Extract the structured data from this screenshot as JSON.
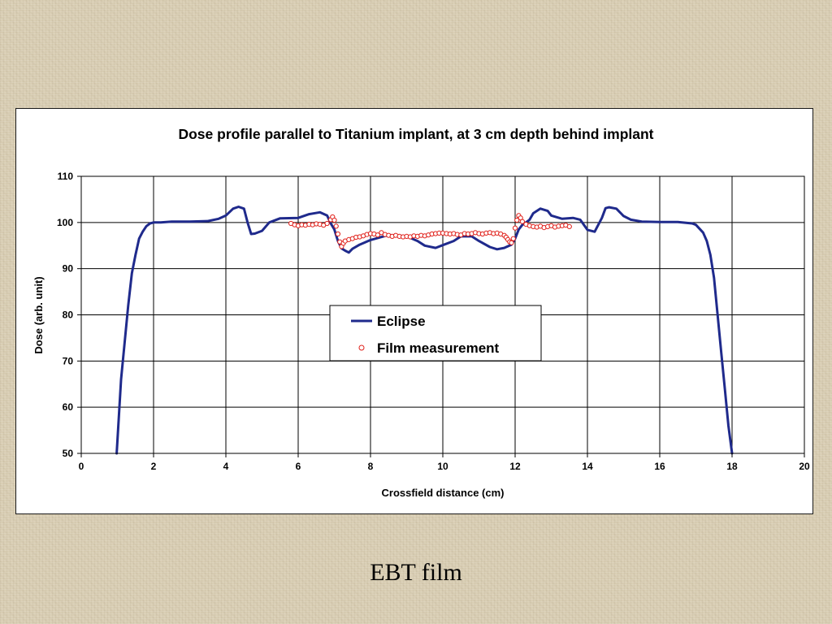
{
  "caption": "EBT film",
  "colors": {
    "eclipse": "#1f2a8c",
    "film": "#e0201a",
    "grid": "#000000",
    "panel": "#ffffff"
  },
  "chart_data": {
    "type": "line",
    "title": "Dose profile parallel to Titanium implant, at 3 cm depth behind implant",
    "xlabel": "Crossfield distance (cm)",
    "ylabel": "Dose (arb. unit)",
    "xlim": [
      0,
      20
    ],
    "ylim": [
      50,
      110
    ],
    "x_ticks": [
      0,
      2,
      4,
      6,
      8,
      10,
      12,
      14,
      16,
      18,
      20
    ],
    "y_ticks": [
      50,
      60,
      70,
      80,
      90,
      100,
      110
    ],
    "grid": true,
    "legend_position": "center",
    "series": [
      {
        "name": "Eclipse",
        "style": "line",
        "x": [
          0.98,
          1.1,
          1.2,
          1.3,
          1.4,
          1.5,
          1.6,
          1.7,
          1.8,
          1.9,
          2.0,
          2.2,
          2.5,
          3.0,
          3.5,
          3.8,
          4.0,
          4.2,
          4.35,
          4.5,
          4.6,
          4.7,
          4.8,
          5.0,
          5.2,
          5.5,
          6.0,
          6.3,
          6.6,
          6.8,
          6.9,
          7.0,
          7.1,
          7.2,
          7.3,
          7.4,
          7.5,
          7.7,
          8.0,
          8.5,
          9.0,
          9.3,
          9.5,
          9.8,
          10.0,
          10.3,
          10.5,
          10.8,
          11.0,
          11.3,
          11.5,
          11.7,
          11.9,
          12.0,
          12.1,
          12.2,
          12.3,
          12.4,
          12.5,
          12.7,
          12.9,
          13.0,
          13.3,
          13.6,
          13.8,
          14.0,
          14.2,
          14.4,
          14.5,
          14.6,
          14.8,
          15.0,
          15.2,
          15.5,
          16.0,
          16.5,
          16.9,
          17.0,
          17.2,
          17.3,
          17.4,
          17.5,
          17.6,
          17.7,
          17.8,
          17.9,
          18.0
        ],
        "values": [
          50,
          66,
          74,
          82,
          89,
          93,
          96.5,
          98,
          99.2,
          99.8,
          100,
          100,
          100.2,
          100.2,
          100.3,
          100.8,
          101.5,
          103,
          103.4,
          103,
          100,
          97.5,
          97.6,
          98.2,
          100,
          100.9,
          101,
          101.8,
          102.2,
          101.5,
          99.8,
          98.5,
          96,
          94.4,
          93.9,
          93.5,
          94.3,
          95.2,
          96.2,
          97.3,
          97,
          96,
          95,
          94.5,
          95.1,
          96,
          97,
          97,
          96,
          94.7,
          94.2,
          94.5,
          95.2,
          96.5,
          98.5,
          99.5,
          100,
          100.6,
          102,
          103,
          102.5,
          101.5,
          100.8,
          101,
          100.6,
          98.4,
          98,
          101,
          103.1,
          103.3,
          103,
          101.4,
          100.6,
          100.2,
          100.1,
          100.1,
          99.8,
          99.5,
          97.8,
          96,
          93,
          88,
          80,
          72,
          64,
          56,
          50
        ]
      },
      {
        "name": "Film measurement",
        "style": "markers",
        "x": [
          5.8,
          5.9,
          6.0,
          6.1,
          6.2,
          6.3,
          6.4,
          6.5,
          6.6,
          6.7,
          6.8,
          6.9,
          6.95,
          7.0,
          7.05,
          7.1,
          7.15,
          7.2,
          7.25,
          7.3,
          7.4,
          7.5,
          7.6,
          7.7,
          7.8,
          7.9,
          8.0,
          8.1,
          8.2,
          8.3,
          8.4,
          8.5,
          8.6,
          8.7,
          8.8,
          8.9,
          9.0,
          9.1,
          9.2,
          9.3,
          9.4,
          9.5,
          9.6,
          9.7,
          9.8,
          9.9,
          10.0,
          10.1,
          10.2,
          10.3,
          10.4,
          10.5,
          10.6,
          10.7,
          10.8,
          10.9,
          11.0,
          11.1,
          11.2,
          11.3,
          11.4,
          11.5,
          11.6,
          11.7,
          11.75,
          11.8,
          11.85,
          11.9,
          11.95,
          12.0,
          12.05,
          12.1,
          12.15,
          12.2,
          12.3,
          12.4,
          12.5,
          12.6,
          12.7,
          12.8,
          12.9,
          13.0,
          13.1,
          13.2,
          13.3,
          13.4,
          13.5
        ],
        "values": [
          99.8,
          99.5,
          99.3,
          99.5,
          99.4,
          99.6,
          99.5,
          99.7,
          99.6,
          99.4,
          99.8,
          100.6,
          101.2,
          100.5,
          99.2,
          97.5,
          95.8,
          94.8,
          95.5,
          96,
          96.3,
          96.5,
          96.8,
          96.9,
          97.1,
          97.4,
          97.6,
          97.5,
          97.3,
          97.8,
          97.4,
          97.2,
          97.0,
          97.2,
          97.0,
          96.9,
          97.0,
          96.9,
          97.1,
          97.0,
          97.2,
          97.1,
          97.3,
          97.5,
          97.6,
          97.7,
          97.7,
          97.6,
          97.5,
          97.6,
          97.4,
          97.3,
          97.6,
          97.5,
          97.6,
          97.8,
          97.6,
          97.5,
          97.7,
          97.8,
          97.6,
          97.7,
          97.5,
          97.2,
          96.8,
          96.3,
          95.8,
          95.6,
          96.5,
          98.8,
          100.5,
          101.5,
          101,
          100.2,
          99.6,
          99.3,
          99.1,
          99.0,
          99.2,
          98.9,
          99.1,
          99.3,
          99.0,
          99.2,
          99.3,
          99.4,
          99.1
        ]
      }
    ]
  }
}
